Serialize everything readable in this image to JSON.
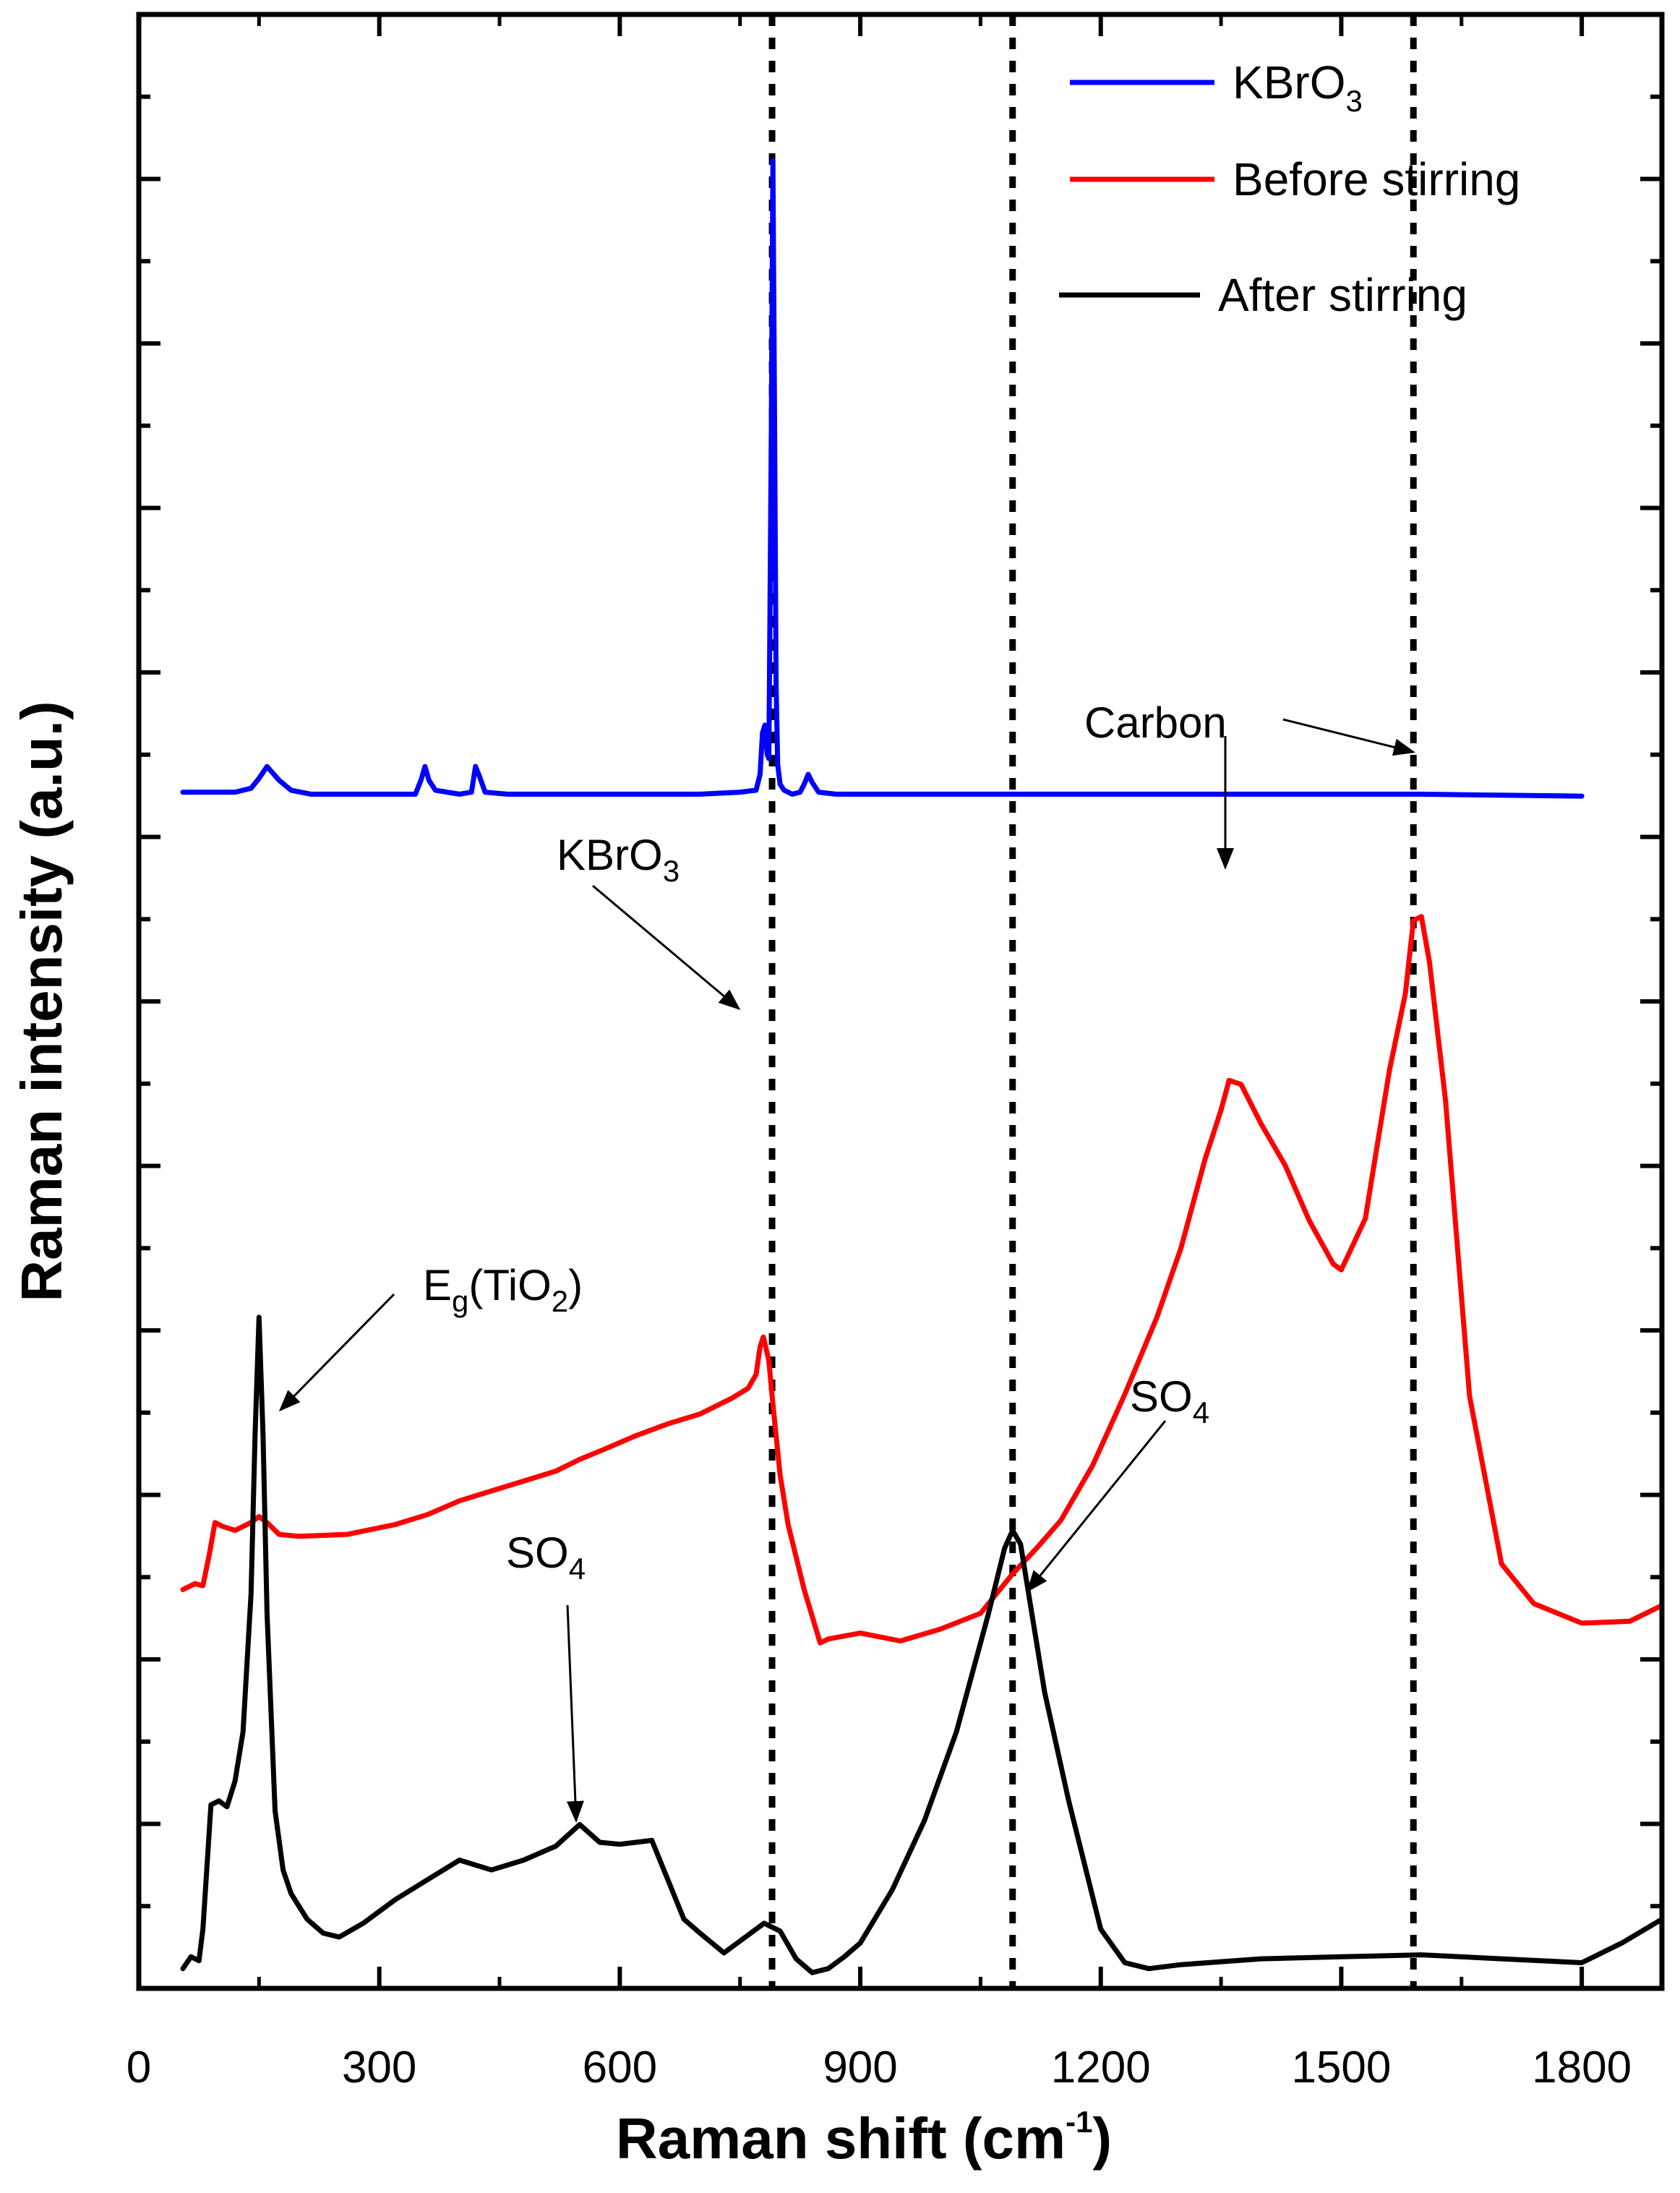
{
  "chart_data": {
    "type": "line",
    "title": "",
    "xlabel": "Raman shift (cm",
    "xlabel_sup": "-1",
    "xlabel_close": ")",
    "ylabel": "Raman intensity (a.u.)",
    "xlim": [
      0,
      1900
    ],
    "ylim": [
      0,
      100
    ],
    "xticks": [
      0,
      300,
      600,
      900,
      1200,
      1500,
      1800
    ],
    "xtick_labels": [
      "0",
      "300",
      "600",
      "900",
      "1200",
      "1500",
      "1800"
    ],
    "yticks_count": 12,
    "reference_lines_x": [
      790,
      1090,
      1590
    ],
    "series": [
      {
        "name": "KBrO3",
        "label_main": "KBrO",
        "label_sub": "3",
        "color": "#0000ff",
        "x": [
          55,
          120,
          140,
          150,
          160,
          175,
          190,
          215,
          260,
          345,
          352,
          357,
          362,
          370,
          400,
          415,
          420,
          425,
          432,
          460,
          700,
          750,
          770,
          775,
          778,
          781,
          784,
          786,
          789,
          791,
          793,
          795,
          797,
          800,
          805,
          815,
          825,
          830,
          835,
          840,
          848,
          870,
          1000,
          1200,
          1400,
          1600,
          1800
        ],
        "y": [
          60.6,
          60.6,
          60.8,
          61.3,
          61.9,
          61.2,
          60.7,
          60.5,
          60.5,
          60.5,
          61.2,
          61.9,
          61.2,
          60.7,
          60.5,
          60.6,
          61.9,
          61.4,
          60.6,
          60.5,
          60.5,
          60.6,
          60.7,
          61.5,
          63.6,
          64.0,
          62.5,
          62.3,
          79.0,
          92.6,
          80.0,
          66.0,
          62.0,
          61.0,
          60.7,
          60.5,
          60.6,
          61.0,
          61.5,
          61.1,
          60.6,
          60.5,
          60.5,
          60.5,
          60.5,
          60.5,
          60.4
        ]
      },
      {
        "name": "Before stirring",
        "color": "#ff0000",
        "x": [
          55,
          70,
          80,
          88,
          95,
          105,
          120,
          140,
          150,
          160,
          175,
          200,
          260,
          320,
          360,
          400,
          440,
          480,
          520,
          550,
          580,
          620,
          660,
          700,
          740,
          760,
          770,
          775,
          779,
          782,
          786,
          790,
          795,
          800,
          810,
          830,
          850,
          860,
          900,
          950,
          1000,
          1050,
          1090,
          1120,
          1150,
          1190,
          1230,
          1270,
          1300,
          1330,
          1350,
          1360,
          1375,
          1400,
          1430,
          1460,
          1490,
          1500,
          1530,
          1560,
          1580,
          1590,
          1600,
          1610,
          1630,
          1660,
          1700,
          1740,
          1800,
          1860,
          1900
        ],
        "y": [
          20.2,
          20.5,
          20.4,
          22.0,
          23.6,
          23.4,
          23.2,
          23.6,
          23.9,
          23.6,
          23.0,
          22.9,
          23.0,
          23.5,
          24.0,
          24.7,
          25.2,
          25.7,
          26.2,
          26.8,
          27.3,
          28.0,
          28.6,
          29.1,
          29.9,
          30.4,
          31.1,
          32.5,
          33.0,
          32.5,
          31.8,
          30.0,
          28.0,
          26.0,
          23.5,
          20.2,
          17.5,
          17.7,
          18.0,
          17.6,
          18.2,
          19.0,
          21.0,
          22.3,
          23.7,
          26.5,
          30.1,
          34.0,
          37.5,
          42.0,
          44.5,
          46.0,
          45.8,
          43.8,
          41.7,
          38.9,
          36.7,
          36.4,
          39.0,
          46.5,
          50.4,
          54.1,
          54.3,
          52.0,
          45.0,
          30.0,
          21.5,
          19.5,
          18.5,
          18.6,
          19.4
        ]
      },
      {
        "name": "After stirring",
        "color": "#000000",
        "x": [
          55,
          65,
          75,
          80,
          90,
          100,
          110,
          120,
          130,
          140,
          145,
          150,
          155,
          160,
          170,
          180,
          190,
          210,
          230,
          250,
          280,
          320,
          360,
          400,
          440,
          480,
          520,
          550,
          575,
          600,
          620,
          640,
          660,
          680,
          700,
          730,
          760,
          780,
          800,
          820,
          840,
          860,
          880,
          900,
          940,
          980,
          1020,
          1060,
          1080,
          1090,
          1100,
          1110,
          1130,
          1160,
          1200,
          1230,
          1260,
          1300,
          1400,
          1500,
          1600,
          1700,
          1800,
          1850,
          1900
        ],
        "y": [
          1.0,
          1.6,
          1.4,
          3.0,
          9.3,
          9.5,
          9.2,
          10.5,
          13.0,
          20.0,
          28.0,
          34.0,
          28.0,
          19.0,
          9.0,
          6.0,
          4.8,
          3.5,
          2.8,
          2.6,
          3.3,
          4.5,
          5.5,
          6.5,
          6.0,
          6.5,
          7.2,
          8.3,
          7.4,
          7.3,
          7.4,
          7.5,
          5.5,
          3.5,
          2.8,
          1.8,
          2.7,
          3.3,
          2.9,
          1.5,
          0.8,
          1.0,
          1.6,
          2.3,
          5.0,
          8.5,
          13.0,
          19.0,
          22.3,
          23.2,
          22.5,
          20.0,
          15.0,
          9.5,
          3.0,
          1.3,
          1.0,
          1.2,
          1.5,
          1.6,
          1.7,
          1.5,
          1.3,
          2.3,
          3.5
        ]
      }
    ],
    "annotations": {
      "kbro3_peak": {
        "main": "KBrO",
        "sub": "3"
      },
      "carbon": "Carbon",
      "eg_tio2": {
        "pre": "E",
        "sub_g": "g",
        "mid": "(TiO",
        "sub_2": "2",
        "post": ")"
      },
      "so4_left": {
        "main": "SO",
        "sub": "4"
      },
      "so4_right": {
        "main": "SO",
        "sub": "4"
      }
    }
  }
}
